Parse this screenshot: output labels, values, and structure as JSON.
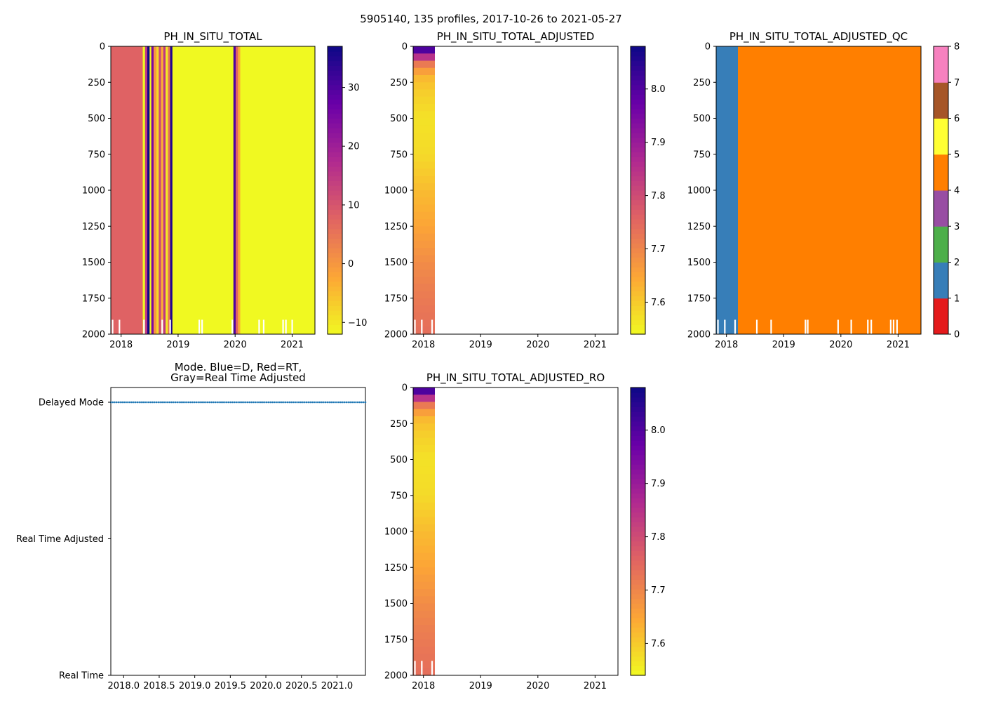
{
  "figure": {
    "suptitle": "5905140, 135 profiles, 2017-10-26 to 2021-05-27"
  },
  "colors": {
    "plasma": [
      "#f0f921",
      "#fca636",
      "#e16462",
      "#b12a90",
      "#6a00a8",
      "#0d0887"
    ],
    "qc": [
      "#e41a1c",
      "#377eb8",
      "#4daf4a",
      "#984ea3",
      "#ff7f00",
      "#ffff33",
      "#a65628",
      "#f781bf",
      "#999999"
    ],
    "mode_points": "#1f77b4"
  },
  "chart_data": [
    {
      "id": "p1",
      "type": "heatmap",
      "title": "PH_IN_SITU_TOTAL",
      "x": {
        "min": 2017.82,
        "max": 2021.4,
        "ticks": [
          2018,
          2019,
          2020,
          2021
        ],
        "tick_labels": [
          "2018",
          "2019",
          "2020",
          "2021"
        ]
      },
      "y": {
        "min": 0,
        "max": 2000,
        "inverted": true,
        "ticks": [
          0,
          250,
          500,
          750,
          1000,
          1250,
          1500,
          1750,
          2000
        ],
        "tick_labels": [
          "0",
          "250",
          "500",
          "750",
          "1000",
          "1250",
          "1500",
          "1750",
          "2000"
        ]
      },
      "colorbar": {
        "cmap": "plasma",
        "min": -12,
        "max": 37,
        "ticks": [
          -10,
          0,
          10,
          20,
          30
        ],
        "tick_labels": [
          "−10",
          "0",
          "10",
          "20",
          "30"
        ]
      },
      "bands": [
        {
          "x0": 2017.82,
          "x1": 2018.38,
          "value": 8
        },
        {
          "x0": 2018.38,
          "x1": 2018.42,
          "value": -12
        },
        {
          "x0": 2018.42,
          "x1": 2018.46,
          "value": 15
        },
        {
          "x0": 2018.46,
          "x1": 2018.5,
          "value": 37
        },
        {
          "x0": 2018.5,
          "x1": 2018.53,
          "value": -12
        },
        {
          "x0": 2018.53,
          "x1": 2018.57,
          "value": 25
        },
        {
          "x0": 2018.57,
          "x1": 2018.62,
          "value": 0
        },
        {
          "x0": 2018.62,
          "x1": 2018.66,
          "value": -8
        },
        {
          "x0": 2018.66,
          "x1": 2018.7,
          "value": 12
        },
        {
          "x0": 2018.7,
          "x1": 2018.74,
          "value": -3
        },
        {
          "x0": 2018.74,
          "x1": 2018.78,
          "value": 15
        },
        {
          "x0": 2018.78,
          "x1": 2018.82,
          "value": -10
        },
        {
          "x0": 2018.82,
          "x1": 2018.86,
          "value": 5
        },
        {
          "x0": 2018.86,
          "x1": 2018.9,
          "value": 35
        },
        {
          "x0": 2018.9,
          "x1": 2019.97,
          "value": -12
        },
        {
          "x0": 2019.97,
          "x1": 2020.01,
          "value": 30
        },
        {
          "x0": 2020.01,
          "x1": 2020.05,
          "value": 8
        },
        {
          "x0": 2020.05,
          "x1": 2020.09,
          "value": -3
        },
        {
          "x0": 2020.09,
          "x1": 2021.4,
          "value": -12
        }
      ],
      "gaps": [
        2017.85,
        2017.97,
        2018.4,
        2018.72,
        2018.86,
        2019.37,
        2019.42,
        2019.95,
        2020.42,
        2020.5,
        2020.84,
        2020.89,
        2021.0
      ]
    },
    {
      "id": "p2",
      "type": "heatmap",
      "title": "PH_IN_SITU_TOTAL_ADJUSTED",
      "x": {
        "min": 2017.82,
        "max": 2021.4,
        "ticks": [
          2018,
          2019,
          2020,
          2021
        ],
        "tick_labels": [
          "2018",
          "2019",
          "2020",
          "2021"
        ]
      },
      "y": {
        "min": 0,
        "max": 2000,
        "inverted": true,
        "ticks": [
          0,
          250,
          500,
          750,
          1000,
          1250,
          1500,
          1750,
          2000
        ],
        "tick_labels": [
          "0",
          "250",
          "500",
          "750",
          "1000",
          "1250",
          "1500",
          "1750",
          "2000"
        ]
      },
      "colorbar": {
        "cmap": "plasma",
        "min": 7.54,
        "max": 8.08,
        "ticks": [
          7.6,
          7.7,
          7.8,
          7.9,
          8.0
        ],
        "tick_labels": [
          "7.6",
          "7.7",
          "7.8",
          "7.9",
          "8.0"
        ]
      },
      "profile": {
        "x0": 2017.82,
        "x1": 2018.2,
        "depth": [
          0,
          50,
          100,
          200,
          300,
          500,
          750,
          1000,
          1250,
          1500,
          1750,
          2000
        ],
        "value": [
          8.06,
          7.95,
          7.75,
          7.63,
          7.6,
          7.57,
          7.58,
          7.62,
          7.65,
          7.69,
          7.72,
          7.74
        ]
      },
      "gaps": [
        2017.85,
        2017.97,
        2018.15
      ]
    },
    {
      "id": "p3",
      "type": "heatmap",
      "title": "PH_IN_SITU_TOTAL_ADJUSTED_QC",
      "x": {
        "min": 2017.82,
        "max": 2021.4,
        "ticks": [
          2018,
          2019,
          2020,
          2021
        ],
        "tick_labels": [
          "2018",
          "2019",
          "2020",
          "2021"
        ]
      },
      "y": {
        "min": 0,
        "max": 2000,
        "inverted": true,
        "ticks": [
          0,
          250,
          500,
          750,
          1000,
          1250,
          1500,
          1750,
          2000
        ],
        "tick_labels": [
          "0",
          "250",
          "500",
          "750",
          "1000",
          "1250",
          "1500",
          "1750",
          "2000"
        ]
      },
      "colorbar": {
        "cmap": "qc",
        "min": 0,
        "max": 8,
        "ticks": [
          0,
          1,
          2,
          3,
          4,
          5,
          6,
          7,
          8
        ],
        "tick_labels": [
          "0",
          "1",
          "2",
          "3",
          "4",
          "5",
          "6",
          "7",
          "8"
        ]
      },
      "bands": [
        {
          "x0": 2017.82,
          "x1": 2018.2,
          "value": 1
        },
        {
          "x0": 2018.2,
          "x1": 2021.4,
          "value": 4
        }
      ],
      "gaps": [
        2017.85,
        2017.97,
        2018.15,
        2018.53,
        2018.78,
        2019.38,
        2019.42,
        2019.95,
        2020.18,
        2020.47,
        2020.53,
        2020.87,
        2020.92,
        2020.98
      ]
    },
    {
      "id": "p4",
      "type": "scatter",
      "title": "Mode. Blue=D, Red=RT,",
      "title2": "Gray=Real Time Adjusted",
      "x": {
        "min": 2017.82,
        "max": 2021.4,
        "ticks": [
          2018.0,
          2018.5,
          2019.0,
          2019.5,
          2020.0,
          2020.5,
          2021.0
        ],
        "tick_labels": [
          "2018.0",
          "2018.5",
          "2019.0",
          "2019.5",
          "2020.0",
          "2020.5",
          "2021.0"
        ]
      },
      "y": {
        "categories": [
          "Delayed Mode",
          "Real Time Adjusted",
          "Real Time"
        ],
        "levels": [
          0,
          1,
          2
        ]
      },
      "points": {
        "level": 0,
        "count": 135,
        "x_start": 2017.82,
        "x_end": 2021.4
      }
    },
    {
      "id": "p5",
      "type": "heatmap",
      "title": "PH_IN_SITU_TOTAL_ADJUSTED_RO",
      "x": {
        "min": 2017.82,
        "max": 2021.4,
        "ticks": [
          2018,
          2019,
          2020,
          2021
        ],
        "tick_labels": [
          "2018",
          "2019",
          "2020",
          "2021"
        ]
      },
      "y": {
        "min": 0,
        "max": 2000,
        "inverted": true,
        "ticks": [
          0,
          250,
          500,
          750,
          1000,
          1250,
          1500,
          1750,
          2000
        ],
        "tick_labels": [
          "0",
          "250",
          "500",
          "750",
          "1000",
          "1250",
          "1500",
          "1750",
          "2000"
        ]
      },
      "colorbar": {
        "cmap": "plasma",
        "min": 7.54,
        "max": 8.08,
        "ticks": [
          7.6,
          7.7,
          7.8,
          7.9,
          8.0
        ],
        "tick_labels": [
          "7.6",
          "7.7",
          "7.8",
          "7.9",
          "8.0"
        ]
      },
      "profile": {
        "x0": 2017.82,
        "x1": 2018.2,
        "depth": [
          0,
          50,
          100,
          200,
          300,
          500,
          750,
          1000,
          1250,
          1500,
          1750,
          2000
        ],
        "value": [
          8.06,
          7.95,
          7.75,
          7.63,
          7.6,
          7.57,
          7.58,
          7.62,
          7.65,
          7.69,
          7.72,
          7.74
        ]
      },
      "gaps": [
        2017.85,
        2017.97,
        2018.15
      ]
    }
  ]
}
